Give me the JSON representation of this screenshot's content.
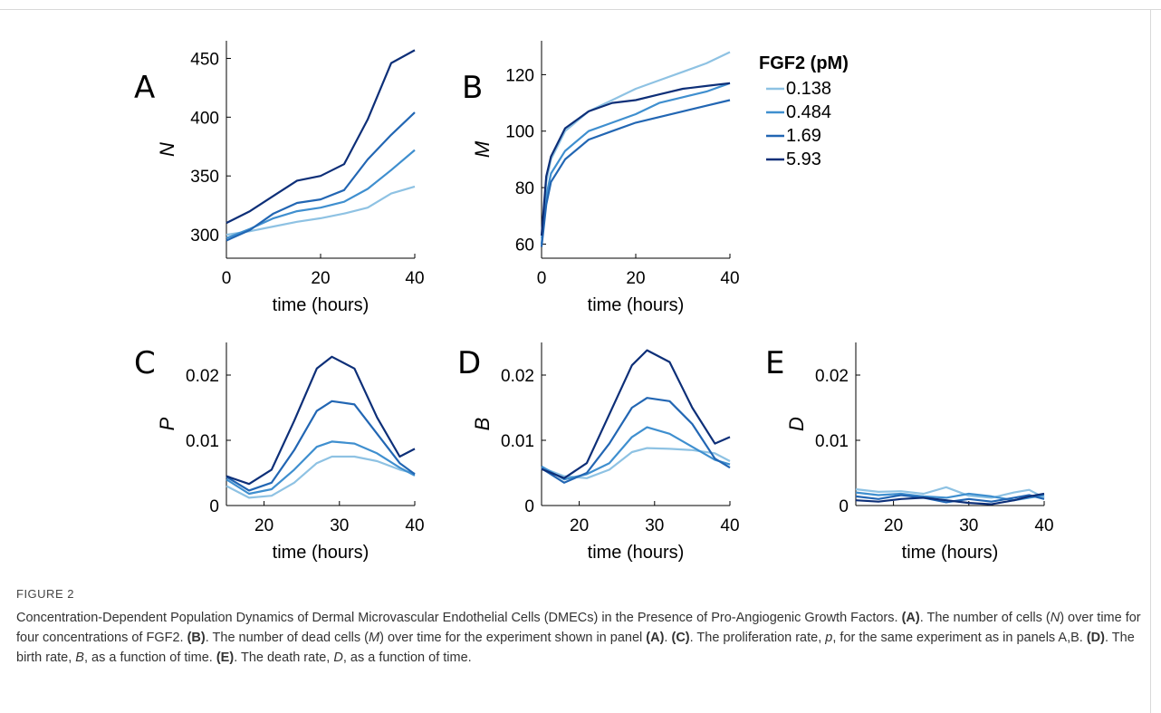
{
  "figure": {
    "label": "FIGURE 2",
    "caption": [
      {
        "t": "Concentration-Dependent Population Dynamics of Dermal Microvascular Endothelial Cells (DMECs) in the Presence of Pro-Angiogenic Growth Factors. "
      },
      {
        "t": "(A)",
        "b": true
      },
      {
        "t": ". The number of cells ("
      },
      {
        "t": "N",
        "i": true
      },
      {
        "t": ") over time for four concentrations of FGF2. "
      },
      {
        "t": "(B)",
        "b": true
      },
      {
        "t": ". The number of dead cells ("
      },
      {
        "t": "M",
        "i": true
      },
      {
        "t": ") over time for the experiment shown in panel "
      },
      {
        "t": "(A)",
        "b": true
      },
      {
        "t": ". "
      },
      {
        "t": "(C)",
        "b": true
      },
      {
        "t": ". The proliferation rate, "
      },
      {
        "t": "p",
        "i": true
      },
      {
        "t": ", for the same experiment as in panels A,B. "
      },
      {
        "t": "(D)",
        "b": true
      },
      {
        "t": ". The birth rate, "
      },
      {
        "t": "B",
        "i": true
      },
      {
        "t": ", as a function of time. "
      },
      {
        "t": "(E)",
        "b": true
      },
      {
        "t": ". The death rate, "
      },
      {
        "t": "D",
        "i": true
      },
      {
        "t": ", as a function of time."
      }
    ]
  },
  "legend": {
    "title": "FGF2 (pM)",
    "entries": [
      "0.138",
      "0.484",
      "1.69",
      "5.93"
    ]
  },
  "colors": {
    "series": [
      "#8ec2e3",
      "#3f8fcf",
      "#2266b3",
      "#0d2f78"
    ],
    "axis": "#000000"
  },
  "chart_data": [
    {
      "panel": "A",
      "type": "line",
      "ylabel": "N",
      "xlabel": "time (hours)",
      "xlim": [
        0,
        40
      ],
      "ylim": [
        280,
        465
      ],
      "xticks": [
        0,
        20,
        40
      ],
      "yticks": [
        300,
        350,
        400,
        450
      ],
      "x": [
        0,
        5,
        10,
        15,
        20,
        25,
        30,
        35,
        40
      ],
      "series": [
        {
          "name": "0.138",
          "values": [
            300,
            303,
            307,
            311,
            314,
            318,
            323,
            335,
            341
          ]
        },
        {
          "name": "0.484",
          "values": [
            297,
            305,
            314,
            320,
            323,
            328,
            339,
            355,
            372
          ]
        },
        {
          "name": "1.69",
          "values": [
            295,
            304,
            318,
            327,
            330,
            338,
            364,
            385,
            404
          ]
        },
        {
          "name": "5.93",
          "values": [
            310,
            320,
            333,
            346,
            350,
            360,
            398,
            446,
            457
          ]
        }
      ]
    },
    {
      "panel": "B",
      "type": "line",
      "ylabel": "M",
      "xlabel": "time (hours)",
      "xlim": [
        0,
        40
      ],
      "ylim": [
        55,
        132
      ],
      "xticks": [
        0,
        20,
        40
      ],
      "yticks": [
        60,
        80,
        100,
        120
      ],
      "x": [
        0,
        1,
        2,
        5,
        10,
        15,
        20,
        25,
        30,
        35,
        40
      ],
      "series": [
        {
          "name": "0.138",
          "values": [
            62,
            82,
            90,
            100,
            107,
            111,
            115,
            118,
            121,
            124,
            128
          ]
        },
        {
          "name": "0.484",
          "values": [
            60,
            77,
            85,
            93,
            100,
            103,
            106,
            110,
            112,
            114,
            117
          ]
        },
        {
          "name": "1.69",
          "values": [
            59,
            74,
            82,
            90,
            97,
            100,
            103,
            105,
            107,
            109,
            111
          ]
        },
        {
          "name": "5.93",
          "values": [
            63,
            84,
            91,
            101,
            107,
            110,
            111,
            113,
            115,
            116,
            117
          ]
        }
      ]
    },
    {
      "panel": "C",
      "type": "line",
      "ylabel": "P",
      "xlabel": "time (hours)",
      "xlim": [
        15,
        40
      ],
      "ylim": [
        0,
        0.025
      ],
      "xticks": [
        20,
        30,
        40
      ],
      "yticks": [
        0,
        0.01,
        0.02
      ],
      "ytick_labels": [
        "0",
        "0.01",
        "0.02"
      ],
      "x": [
        15,
        18,
        21,
        24,
        27,
        29,
        32,
        35,
        38,
        40
      ],
      "series": [
        {
          "name": "0.138",
          "values": [
            0.003,
            0.0012,
            0.0015,
            0.0035,
            0.0065,
            0.0075,
            0.0075,
            0.0068,
            0.0055,
            0.0049
          ]
        },
        {
          "name": "0.484",
          "values": [
            0.004,
            0.0018,
            0.0025,
            0.0055,
            0.009,
            0.0098,
            0.0095,
            0.008,
            0.0058,
            0.0046
          ]
        },
        {
          "name": "1.69",
          "values": [
            0.0044,
            0.0023,
            0.0035,
            0.0085,
            0.0145,
            0.016,
            0.0155,
            0.011,
            0.0065,
            0.0048
          ]
        },
        {
          "name": "5.93",
          "values": [
            0.0045,
            0.0033,
            0.0055,
            0.013,
            0.021,
            0.0228,
            0.021,
            0.0135,
            0.0075,
            0.0087
          ]
        }
      ]
    },
    {
      "panel": "D",
      "type": "line",
      "ylabel": "B",
      "xlabel": "time (hours)",
      "xlim": [
        15,
        40
      ],
      "ylim": [
        0,
        0.025
      ],
      "xticks": [
        20,
        30,
        40
      ],
      "yticks": [
        0,
        0.01,
        0.02
      ],
      "ytick_labels": [
        "0",
        "0.01",
        "0.02"
      ],
      "x": [
        15,
        18,
        21,
        24,
        27,
        29,
        32,
        35,
        38,
        40
      ],
      "series": [
        {
          "name": "0.138",
          "values": [
            0.0058,
            0.0045,
            0.0042,
            0.0055,
            0.0082,
            0.0088,
            0.0087,
            0.0085,
            0.008,
            0.0068
          ]
        },
        {
          "name": "0.484",
          "values": [
            0.006,
            0.004,
            0.0048,
            0.0065,
            0.0105,
            0.012,
            0.011,
            0.009,
            0.007,
            0.0063
          ]
        },
        {
          "name": "1.69",
          "values": [
            0.0057,
            0.0035,
            0.005,
            0.0095,
            0.015,
            0.0165,
            0.016,
            0.0125,
            0.0072,
            0.0058
          ]
        },
        {
          "name": "5.93",
          "values": [
            0.0056,
            0.0042,
            0.0065,
            0.014,
            0.0215,
            0.0238,
            0.022,
            0.015,
            0.0095,
            0.0105
          ]
        }
      ]
    },
    {
      "panel": "E",
      "type": "line",
      "ylabel": "D",
      "xlabel": "time (hours)",
      "xlim": [
        15,
        40
      ],
      "ylim": [
        0,
        0.025
      ],
      "xticks": [
        20,
        30,
        40
      ],
      "yticks": [
        0,
        0.01,
        0.02
      ],
      "ytick_labels": [
        "0",
        "0.01",
        "0.02"
      ],
      "x": [
        15,
        18,
        21,
        24,
        27,
        30,
        33,
        36,
        38,
        40
      ],
      "series": [
        {
          "name": "0.138",
          "values": [
            0.0025,
            0.0021,
            0.0022,
            0.0018,
            0.0028,
            0.0015,
            0.0012,
            0.002,
            0.0024,
            0.0012
          ]
        },
        {
          "name": "0.484",
          "values": [
            0.002,
            0.0016,
            0.0018,
            0.0014,
            0.0012,
            0.0018,
            0.0014,
            0.0008,
            0.0012,
            0.0016
          ]
        },
        {
          "name": "1.69",
          "values": [
            0.0014,
            0.001,
            0.0016,
            0.0012,
            0.0005,
            0.001,
            0.0006,
            0.0012,
            0.0016,
            0.001
          ]
        },
        {
          "name": "5.93",
          "values": [
            0.0008,
            0.0006,
            0.001,
            0.0012,
            0.0008,
            0.0004,
            0.0002,
            0.0008,
            0.0014,
            0.0018
          ]
        }
      ]
    }
  ]
}
